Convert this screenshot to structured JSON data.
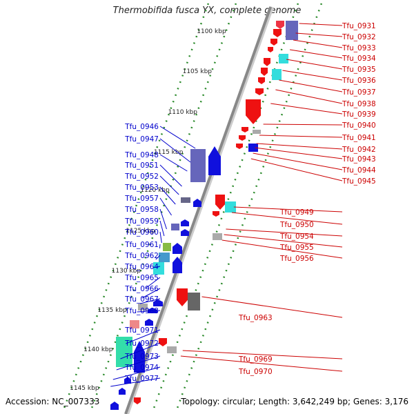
{
  "title": "Thermobifida fusca YX, complete genome",
  "footer": {
    "accession": "Accession: NC_007333",
    "summary": "Topology: circular; Length: 3,642,249 bp; Genes: 3,176"
  },
  "colors": {
    "forward_label": "#0000cc",
    "reverse_label": "#cc0000",
    "backbone": "#888888",
    "dots": "#2a8a2a"
  },
  "kbp_marks": [
    {
      "label": "1100 kbp",
      "kbp": 1100
    },
    {
      "label": "1105 kbp",
      "kbp": 1105
    },
    {
      "label": "1110 kbp",
      "kbp": 1110
    },
    {
      "label": "1115 kbp",
      "kbp": 1115
    },
    {
      "label": "1120 kbp",
      "kbp": 1120
    },
    {
      "label": "1125 kbp",
      "kbp": 1125
    },
    {
      "label": "1130 kbp",
      "kbp": 1130
    },
    {
      "label": "1135 kbp",
      "kbp": 1135
    },
    {
      "label": "1140 kbp",
      "kbp": 1140
    },
    {
      "label": "1145 kbp",
      "kbp": 1145
    }
  ],
  "forward_genes": [
    "Tfu_0946",
    "Tfu_0947",
    "Tfu_0948",
    "Tfu_0951",
    "Tfu_0952",
    "Tfu_0953",
    "Tfu_0957",
    "Tfu_0958",
    "Tfu_0959",
    "Tfu_0960",
    "Tfu_0961",
    "Tfu_0962",
    "Tfu_0964",
    "Tfu_0965",
    "Tfu_0966",
    "Tfu_0967",
    "Tfu_0968",
    "Tfu_0971",
    "Tfu_0972",
    "Tfu_0973",
    "Tfu_0974",
    "Tfu_0977"
  ],
  "reverse_genes": [
    "Tfu_0931",
    "Tfu_0932",
    "Tfu_0933",
    "Tfu_0934",
    "Tfu_0935",
    "Tfu_0936",
    "Tfu_0937",
    "Tfu_0938",
    "Tfu_0939",
    "Tfu_0940",
    "Tfu_0941",
    "Tfu_0942",
    "Tfu_0943",
    "Tfu_0944",
    "Tfu_0945",
    "Tfu_0949",
    "Tfu_0950",
    "Tfu_0954",
    "Tfu_0955",
    "Tfu_0956",
    "Tfu_0963",
    "Tfu_0969",
    "Tfu_0970"
  ]
}
